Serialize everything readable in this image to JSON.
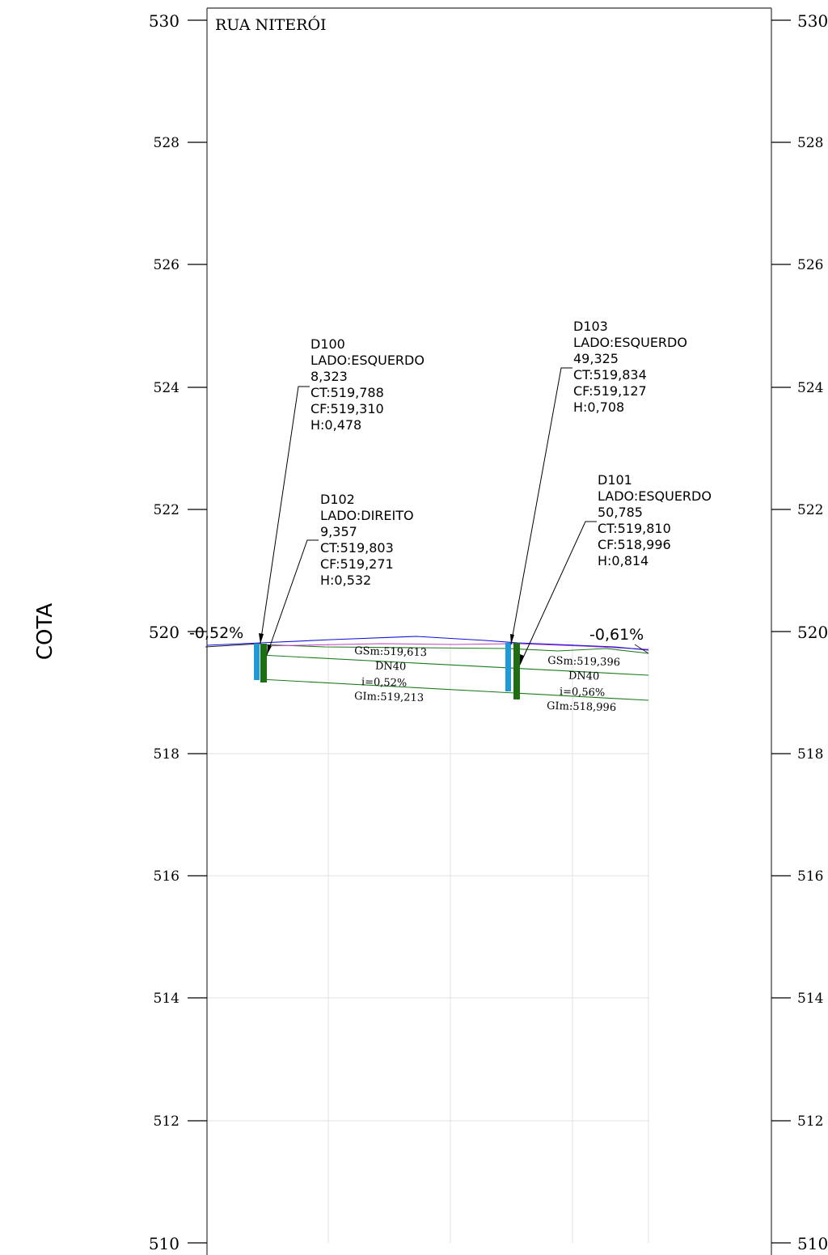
{
  "profile": {
    "street_name": "RUA NITERÓI",
    "axis_title": "COTA",
    "y_ticks_left": [
      "530",
      "528",
      "526",
      "524",
      "522",
      "520",
      "518",
      "516",
      "514",
      "512",
      "510"
    ],
    "y_ticks_right": [
      "530",
      "528",
      "526",
      "524",
      "522",
      "520",
      "518",
      "516",
      "514",
      "512",
      "510"
    ],
    "slopes": {
      "left": "-0,52%",
      "right": "-0,61%"
    },
    "manholes": [
      {
        "lines": [
          "D100",
          "LADO:ESQUERDO",
          "8,323",
          "CT:519,788",
          "CF:519,310",
          "H:0,478"
        ]
      },
      {
        "lines": [
          "D102",
          "LADO:DIREITO",
          "9,357",
          "CT:519,803",
          "CF:519,271",
          "H:0,532"
        ]
      },
      {
        "lines": [
          "D103",
          "LADO:ESQUERDO",
          "49,325",
          "CT:519,834",
          "CF:519,127",
          "H:0,708"
        ]
      },
      {
        "lines": [
          "D101",
          "LADO:ESQUERDO",
          "50,785",
          "CT:519,810",
          "CF:518,996",
          "H:0,814"
        ]
      }
    ],
    "pipes": [
      {
        "gsm": "GSm:519,613",
        "dn": "DN40",
        "slope": "i=0,52%",
        "gim": "GIm:519,213"
      },
      {
        "gsm": "GSm:519,396",
        "dn": "DN40",
        "slope": "i=0,56%",
        "gim": "GIm:518,996"
      }
    ],
    "colors": {
      "terrain": "#1010d8",
      "pipe": "#1a7a1a",
      "manhole_cyan": "#1f9ad6",
      "manhole_green": "#1e6e12",
      "grid": "#e2e2e2",
      "profile_magenta": "#c040c0"
    }
  }
}
